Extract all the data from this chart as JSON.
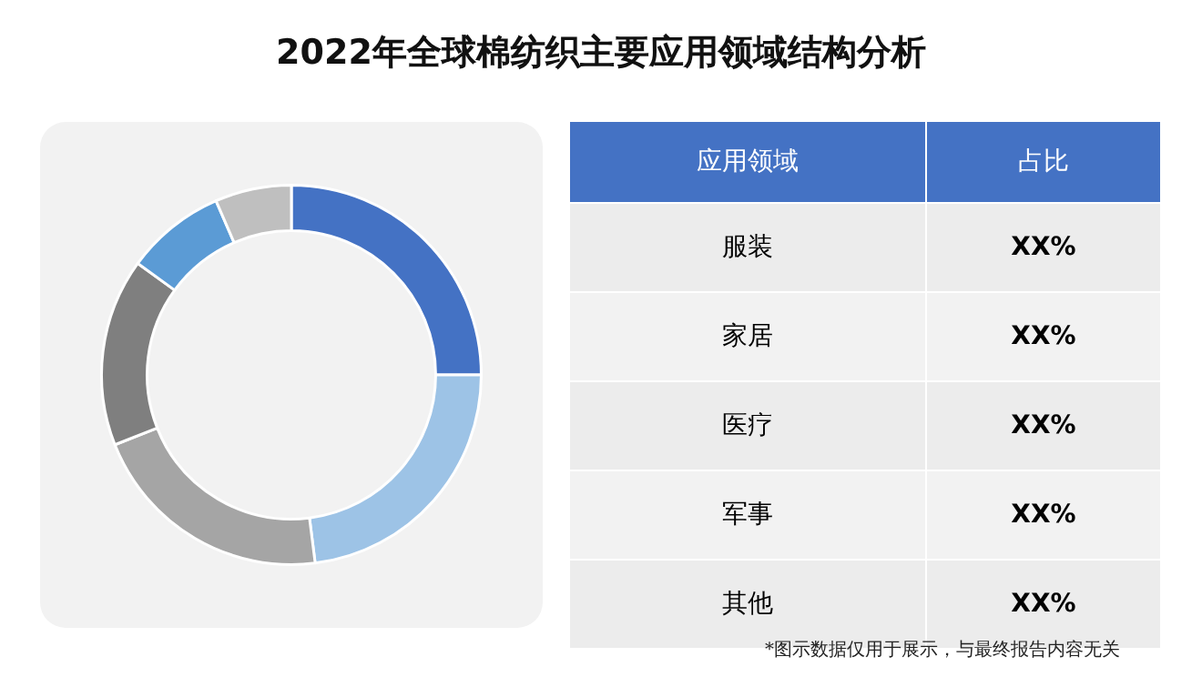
{
  "chart_data": [
    {
      "type": "donut",
      "title": "2022年全球棉纺织主要应用领域结构分析",
      "categories": [
        null,
        null,
        null,
        null,
        null,
        null
      ],
      "values": [
        25,
        23,
        21,
        16,
        8.5,
        6.5
      ],
      "colors": [
        "#4472c4",
        "#9dc3e6",
        "#a5a5a5",
        "#7f7f7f",
        "#5b9bd5",
        "#bfbfbf"
      ],
      "legend": false
    },
    {
      "type": "other",
      "xlabel": "应用领域",
      "ylabel": "占比",
      "categories": [
        "服装",
        "家居",
        "医疗",
        "军事",
        "其他"
      ],
      "value_labels": [
        "XX%",
        "XX%",
        "XX%",
        "XX%",
        "XX%"
      ],
      "annotations": [
        "*图示数据仅用于展示，与最终报告内容无关"
      ]
    }
  ]
}
